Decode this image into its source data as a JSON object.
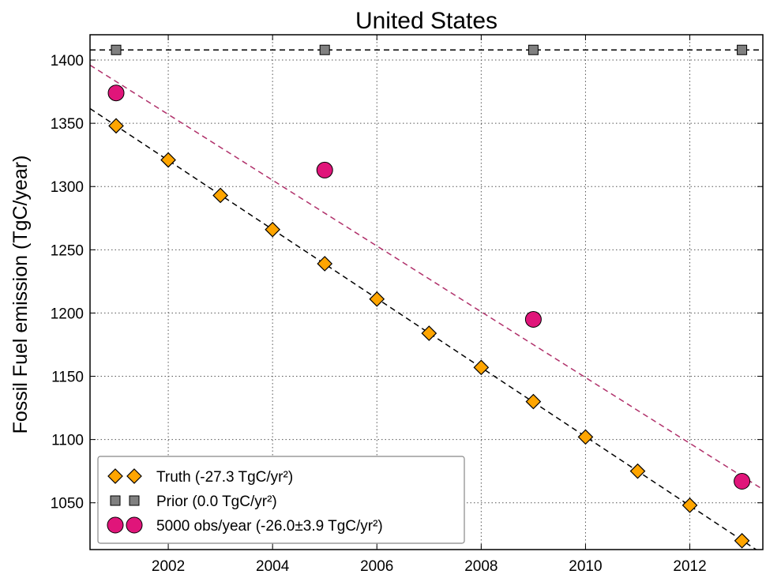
{
  "chart_data": {
    "type": "scatter",
    "title": "United States",
    "xlabel": "",
    "ylabel": "Fossil Fuel emission (TgC/year)",
    "xlim": [
      2000.5,
      2013.4
    ],
    "ylim": [
      1013,
      1420
    ],
    "x_ticks": [
      2002,
      2004,
      2006,
      2008,
      2010,
      2012
    ],
    "y_ticks": [
      1050,
      1100,
      1150,
      1200,
      1250,
      1300,
      1350,
      1400
    ],
    "grid": true,
    "legend_position": "lower-left",
    "series": [
      {
        "name": "Truth (-27.3 TgC/yr²)",
        "marker": "diamond",
        "color": "#FFA500",
        "x": [
          2001,
          2002,
          2003,
          2004,
          2005,
          2006,
          2007,
          2008,
          2009,
          2010,
          2011,
          2012,
          2013
        ],
        "y": [
          1348,
          1321,
          1293,
          1266,
          1239,
          1211,
          1184,
          1157,
          1130,
          1102,
          1075,
          1048,
          1020
        ]
      },
      {
        "name": "Prior (0.0 TgC/yr²)",
        "marker": "square",
        "color": "#808080",
        "x": [
          2001,
          2005,
          2009,
          2013
        ],
        "y": [
          1408,
          1408,
          1408,
          1408
        ]
      },
      {
        "name": "5000 obs/year (-26.0±3.9 TgC/yr²)",
        "marker": "circle",
        "color": "#E0157A",
        "x": [
          2001,
          2005,
          2009,
          2013
        ],
        "y": [
          1374,
          1313,
          1195,
          1067
        ]
      }
    ],
    "trend_lines": [
      {
        "color": "#000000",
        "slope": -27.3,
        "intercept_x": 2001,
        "intercept_y": 1348
      },
      {
        "color": "#000000",
        "slope": 0.0,
        "intercept_x": 2001,
        "intercept_y": 1408
      },
      {
        "color": "#B0306A",
        "slope": -26.0,
        "intercept_x": 2001,
        "intercept_y": 1383
      }
    ]
  }
}
